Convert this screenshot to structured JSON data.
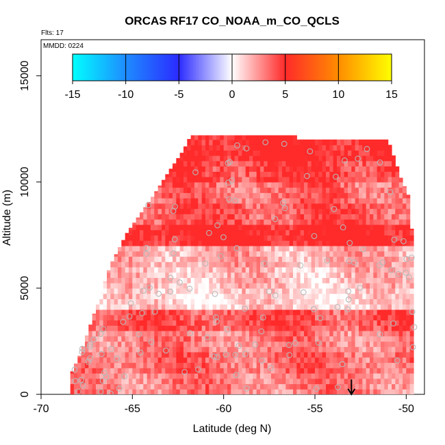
{
  "chart_data": {
    "type": "heatmap",
    "title": "ORCAS RF17 CO_NOAA_m_CO_QCLS",
    "flights_label": "Flts: 17",
    "date_label": "MMDD: 0224",
    "xlabel": "Latitude (deg N)",
    "ylabel": "Altitude (m)",
    "xlim": [
      -70,
      -49
    ],
    "ylim": [
      0,
      16700
    ],
    "x_ticks": [
      -70,
      -65,
      -60,
      -55,
      -50
    ],
    "y_ticks": [
      0,
      5000,
      10000,
      15000
    ],
    "colorbar": {
      "ticks": [
        -15,
        -10,
        -5,
        0,
        5,
        10,
        15
      ],
      "range": [
        -15,
        15
      ],
      "colors": [
        "#00ffff",
        "#1e8cff",
        "#2b2bff",
        "#ffffff",
        "#ff2a2a",
        "#ff8c00",
        "#ffff00"
      ]
    },
    "data_envelope_lat_vs_top_alt": [
      [
        -68.4,
        0
      ],
      [
        -68.4,
        900
      ],
      [
        -67.8,
        2000
      ],
      [
        -67.1,
        3800
      ],
      [
        -66.2,
        6100
      ],
      [
        -65.3,
        7600
      ],
      [
        -63.9,
        9300
      ],
      [
        -63.0,
        10500
      ],
      [
        -62.2,
        11500
      ],
      [
        -61.8,
        12200
      ],
      [
        -56.0,
        12200
      ],
      [
        -56.0,
        12000
      ],
      [
        -51.0,
        12000
      ],
      [
        -50.6,
        11000
      ],
      [
        -50.3,
        10200
      ],
      [
        -49.9,
        9400
      ],
      [
        -49.6,
        7000
      ],
      [
        -49.5,
        0
      ]
    ],
    "rows": [
      {
        "alt": 11500,
        "value": 5.5
      },
      {
        "alt": 10500,
        "value": 4.5
      },
      {
        "alt": 9500,
        "value": 3.5
      },
      {
        "alt": 8500,
        "value": 4.0
      },
      {
        "alt": 7500,
        "value": 5.5
      },
      {
        "alt": 6500,
        "value": 2.0
      },
      {
        "alt": 5500,
        "value": 1.5
      },
      {
        "alt": 4500,
        "value": 1.0
      },
      {
        "alt": 3500,
        "value": 4.0
      },
      {
        "alt": 2500,
        "value": 3.0
      },
      {
        "alt": 1500,
        "value": 3.5
      },
      {
        "alt": 500,
        "value": 3.0
      }
    ],
    "marker_arrow": {
      "lat": -53,
      "alt_top": 700,
      "alt_bottom": 0
    }
  }
}
